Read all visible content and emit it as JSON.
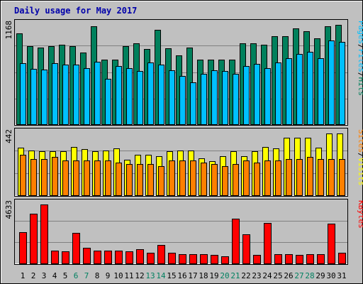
{
  "title": "Daily usage for May 2017",
  "colors": {
    "background": "#c0c0c0",
    "grid": "#808080",
    "hits": "#00805c",
    "files": "#00c0ff",
    "pages": "#00c0ff",
    "visits": "#ffff00",
    "sites": "#ff8000",
    "kbytes": "#ff0000",
    "title": "#0000aa",
    "weekend": "#008060",
    "weekday": "#000000"
  },
  "chart_data": [
    {
      "type": "bar",
      "panel": "hits-files-pages",
      "categories": [
        "1",
        "2",
        "3",
        "4",
        "5",
        "6",
        "7",
        "8",
        "9",
        "10",
        "11",
        "12",
        "13",
        "14",
        "15",
        "16",
        "17",
        "18",
        "19",
        "20",
        "21",
        "22",
        "23",
        "24",
        "25",
        "26",
        "27",
        "28",
        "29",
        "30",
        "31"
      ],
      "weekend_days": [
        "6",
        "7",
        "13",
        "14",
        "20",
        "21",
        "27",
        "28"
      ],
      "ymax_label": "1168",
      "ylim": [
        0,
        1168
      ],
      "legend": [
        {
          "text": "Hits",
          "color": "#00805c"
        },
        {
          "text": "/",
          "color": "#000000"
        },
        {
          "text": "Files",
          "color": "#00c0ff"
        },
        {
          "text": "/",
          "color": "#000000"
        },
        {
          "text": "Pages",
          "color": "#00c0ff"
        }
      ],
      "series": [
        {
          "values": [
            1068,
            923,
            901,
            923,
            937,
            923,
            848,
            1151,
            765,
            765,
            923,
            951,
            887,
            1108,
            895,
            813,
            901,
            765,
            765,
            765,
            765,
            951,
            951,
            937,
            1039,
            1039,
            1125,
            1096,
            1013,
            1155,
            1168
          ]
        },
        {
          "values": [
            718,
            651,
            644,
            717,
            700,
            708,
            659,
            737,
            536,
            690,
            666,
            626,
            726,
            704,
            636,
            569,
            498,
            595,
            637,
            627,
            598,
            691,
            713,
            664,
            727,
            781,
            825,
            855,
            779,
            984,
            971
          ]
        }
      ]
    },
    {
      "type": "bar",
      "panel": "visits-sites",
      "categories": [
        "1",
        "2",
        "3",
        "4",
        "5",
        "6",
        "7",
        "8",
        "9",
        "10",
        "11",
        "12",
        "13",
        "14",
        "15",
        "16",
        "17",
        "18",
        "19",
        "20",
        "21",
        "22",
        "23",
        "24",
        "25",
        "26",
        "27",
        "28",
        "29",
        "30",
        "31"
      ],
      "ymax_label": "442",
      "ylim": [
        0,
        442
      ],
      "legend": [
        {
          "text": "Visits",
          "color": "#ffff00"
        },
        {
          "text": "/",
          "color": "#000000"
        },
        {
          "text": "Sites",
          "color": "#ff8000"
        }
      ],
      "series": [
        {
          "values": [
            343,
            323,
            316,
            316,
            316,
            349,
            330,
            316,
            323,
            336,
            257,
            290,
            290,
            283,
            316,
            323,
            323,
            264,
            244,
            283,
            316,
            283,
            316,
            349,
            336,
            414,
            414,
            414,
            342,
            442,
            442
          ]
        },
        {
          "values": [
            289,
            263,
            263,
            276,
            250,
            250,
            250,
            250,
            250,
            237,
            224,
            224,
            224,
            211,
            250,
            250,
            250,
            237,
            224,
            211,
            224,
            250,
            237,
            250,
            250,
            263,
            263,
            276,
            263,
            263,
            263
          ]
        }
      ]
    },
    {
      "type": "bar",
      "panel": "kbytes",
      "categories": [
        "1",
        "2",
        "3",
        "4",
        "5",
        "6",
        "7",
        "8",
        "9",
        "10",
        "11",
        "12",
        "13",
        "14",
        "15",
        "16",
        "17",
        "18",
        "19",
        "20",
        "21",
        "22",
        "23",
        "24",
        "25",
        "26",
        "27",
        "28",
        "29",
        "30",
        "31"
      ],
      "ymax_label": "4633",
      "ylim": [
        0,
        4633
      ],
      "legend": [
        {
          "text": "KBytes",
          "color": "#ff0000"
        }
      ],
      "series": [
        {
          "values": [
            2496,
            3893,
            4633,
            1069,
            975,
            2424,
            1260,
            1069,
            1069,
            1069,
            975,
            1164,
            878,
            1476,
            878,
            782,
            782,
            782,
            735,
            606,
            3516,
            2324,
            735,
            3207,
            782,
            782,
            735,
            782,
            782,
            3136,
            878
          ]
        }
      ]
    }
  ]
}
